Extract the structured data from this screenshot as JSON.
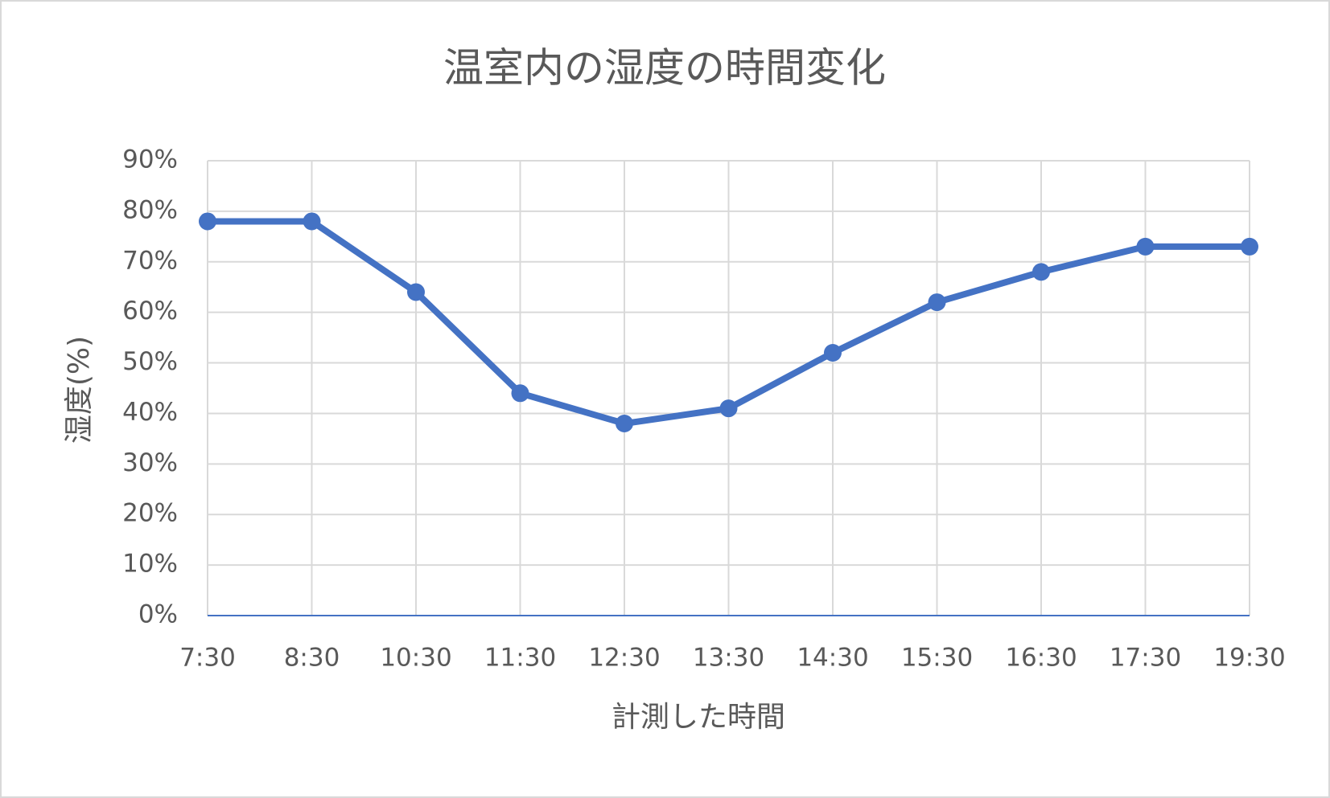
{
  "chart_data": {
    "type": "line",
    "title": "温室内の湿度の時間変化",
    "x_label": "計測した時間",
    "y_label": "湿度(%)",
    "categories": [
      "7:30",
      "8:30",
      "10:30",
      "11:30",
      "12:30",
      "13:30",
      "14:30",
      "15:30",
      "16:30",
      "17:30",
      "19:30"
    ],
    "series": [
      {
        "name": "湿度",
        "color": "#4472c4",
        "values": [
          78,
          78,
          64,
          44,
          38,
          41,
          52,
          62,
          68,
          73,
          73
        ]
      }
    ],
    "ylim": [
      0,
      90
    ],
    "yticks": [
      {
        "value": 0,
        "label": "0%"
      },
      {
        "value": 10,
        "label": "10%"
      },
      {
        "value": 20,
        "label": "20%"
      },
      {
        "value": 30,
        "label": "30%"
      },
      {
        "value": 40,
        "label": "40%"
      },
      {
        "value": 50,
        "label": "50%"
      },
      {
        "value": 60,
        "label": "60%"
      },
      {
        "value": 70,
        "label": "70%"
      },
      {
        "value": 80,
        "label": "80%"
      },
      {
        "value": 90,
        "label": "90%"
      }
    ],
    "grid": true
  }
}
